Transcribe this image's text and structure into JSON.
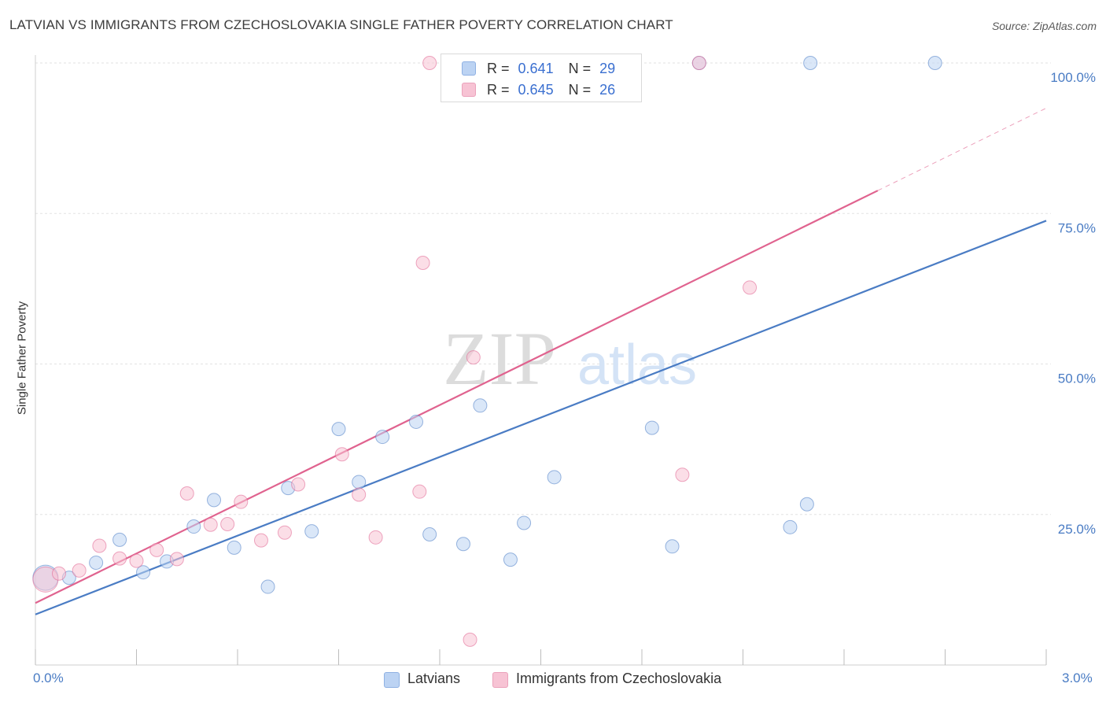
{
  "header": {
    "title": "LATVIAN VS IMMIGRANTS FROM CZECHOSLOVAKIA SINGLE FATHER POVERTY CORRELATION CHART",
    "source": "Source: ZipAtlas.com"
  },
  "watermark": {
    "zip": "ZIP",
    "atlas": "atlas"
  },
  "legend": {
    "series1": {
      "r_label": "R =",
      "r_value": "0.641",
      "n_label": "N =",
      "n_value": "29"
    },
    "series2": {
      "r_label": "R =",
      "r_value": "0.645",
      "n_label": "N =",
      "n_value": "26"
    }
  },
  "bottom_legend": {
    "series1": "Latvians",
    "series2": "Immigrants from Czechoslovakia"
  },
  "axes": {
    "x_min_label": "0.0%",
    "x_max_label": "3.0%",
    "y_ticks": [
      "25.0%",
      "50.0%",
      "75.0%",
      "100.0%"
    ]
  },
  "chart_data": {
    "type": "scatter",
    "title": "LATVIAN VS IMMIGRANTS FROM CZECHOSLOVAKIA SINGLE FATHER POVERTY CORRELATION CHART",
    "xlabel": "",
    "ylabel": "Single Father Poverty",
    "xlim": [
      0,
      3.0
    ],
    "ylim": [
      0,
      102
    ],
    "x_unit": "%",
    "y_unit": "%",
    "y_gridlines": [
      25,
      50,
      75,
      100
    ],
    "x_ticks": [
      0,
      0.3,
      0.6,
      0.9,
      1.2,
      1.5,
      1.8,
      2.1,
      2.4,
      2.7,
      3.0
    ],
    "series": [
      {
        "name": "Latvians",
        "color": "#4a7cc4",
        "fill": "#bcd3f3",
        "r": 0.641,
        "n": 29,
        "trend": {
          "x0": 0,
          "y0": 8.4,
          "x1": 3.0,
          "y1": 73.8,
          "dashed_from_x": null
        },
        "points": [
          {
            "x": 0.03,
            "y": 14.5,
            "big": true
          },
          {
            "x": 0.1,
            "y": 14.5
          },
          {
            "x": 0.18,
            "y": 17.0
          },
          {
            "x": 0.25,
            "y": 20.8
          },
          {
            "x": 0.32,
            "y": 15.4
          },
          {
            "x": 0.39,
            "y": 17.2
          },
          {
            "x": 0.47,
            "y": 23.0
          },
          {
            "x": 0.53,
            "y": 27.4
          },
          {
            "x": 0.59,
            "y": 19.5
          },
          {
            "x": 0.69,
            "y": 13.0
          },
          {
            "x": 0.75,
            "y": 29.4
          },
          {
            "x": 0.82,
            "y": 22.2
          },
          {
            "x": 0.9,
            "y": 39.2
          },
          {
            "x": 0.96,
            "y": 30.4
          },
          {
            "x": 1.03,
            "y": 37.9
          },
          {
            "x": 1.13,
            "y": 40.4
          },
          {
            "x": 1.17,
            "y": 21.7
          },
          {
            "x": 1.27,
            "y": 20.1
          },
          {
            "x": 1.32,
            "y": 43.1
          },
          {
            "x": 1.41,
            "y": 17.5
          },
          {
            "x": 1.45,
            "y": 23.6
          },
          {
            "x": 1.54,
            "y": 31.2
          },
          {
            "x": 1.83,
            "y": 39.4
          },
          {
            "x": 1.89,
            "y": 19.7
          },
          {
            "x": 1.97,
            "y": 100.0
          },
          {
            "x": 2.24,
            "y": 22.9
          },
          {
            "x": 2.29,
            "y": 26.7
          },
          {
            "x": 2.3,
            "y": 100.0
          },
          {
            "x": 2.67,
            "y": 100.0
          }
        ]
      },
      {
        "name": "Immigrants from Czechoslovakia",
        "color": "#e0638f",
        "fill": "#f7c3d4",
        "r": 0.645,
        "n": 26,
        "trend": {
          "x0": 0,
          "y0": 10.3,
          "x1": 3.0,
          "y1": 92.5,
          "dashed_from_x": 2.5
        },
        "points": [
          {
            "x": 0.03,
            "y": 14.2,
            "big": true
          },
          {
            "x": 0.07,
            "y": 15.2
          },
          {
            "x": 0.13,
            "y": 15.7
          },
          {
            "x": 0.19,
            "y": 19.8
          },
          {
            "x": 0.25,
            "y": 17.7
          },
          {
            "x": 0.3,
            "y": 17.3
          },
          {
            "x": 0.36,
            "y": 19.1
          },
          {
            "x": 0.42,
            "y": 17.6
          },
          {
            "x": 0.45,
            "y": 28.5
          },
          {
            "x": 0.52,
            "y": 23.3
          },
          {
            "x": 0.57,
            "y": 23.4
          },
          {
            "x": 0.61,
            "y": 27.1
          },
          {
            "x": 0.67,
            "y": 20.7
          },
          {
            "x": 0.74,
            "y": 22.0
          },
          {
            "x": 0.78,
            "y": 30.0
          },
          {
            "x": 0.91,
            "y": 35.0
          },
          {
            "x": 0.96,
            "y": 28.3
          },
          {
            "x": 1.01,
            "y": 21.2
          },
          {
            "x": 1.15,
            "y": 66.8
          },
          {
            "x": 1.14,
            "y": 28.8
          },
          {
            "x": 1.17,
            "y": 100.0
          },
          {
            "x": 1.29,
            "y": 4.2
          },
          {
            "x": 1.3,
            "y": 51.1
          },
          {
            "x": 1.92,
            "y": 31.6
          },
          {
            "x": 1.97,
            "y": 100.0
          },
          {
            "x": 2.12,
            "y": 62.7
          }
        ]
      }
    ]
  }
}
